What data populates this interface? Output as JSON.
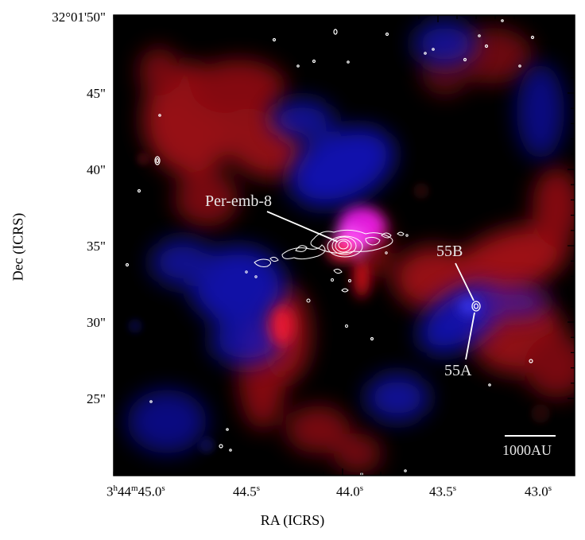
{
  "image": {
    "colors": {
      "blue": "#1c1cff",
      "red": "#ff1c1c",
      "magenta": "#ff2cff",
      "contour": "#ffffff",
      "background": "#000000"
    }
  },
  "axes": {
    "xlabel": "RA (ICRS)",
    "ylabel": "Dec (ICRS)",
    "x_ticks": [
      {
        "main": "3",
        "sup1": "h",
        "mid": "44",
        "sup2": "m",
        "sec": "45.0",
        "sup3": "s"
      },
      {
        "main": "",
        "sup1": "",
        "mid": "",
        "sup2": "",
        "sec": "44.5",
        "sup3": "s"
      },
      {
        "main": "",
        "sup1": "",
        "mid": "",
        "sup2": "",
        "sec": "44.0",
        "sup3": "s"
      },
      {
        "main": "",
        "sup1": "",
        "mid": "",
        "sup2": "",
        "sec": "43.5",
        "sup3": "s"
      },
      {
        "main": "",
        "sup1": "",
        "mid": "",
        "sup2": "",
        "sec": "43.0",
        "sup3": "s"
      }
    ],
    "y_ticks": [
      "32°01'50\"",
      "45\"",
      "40\"",
      "35\"",
      "30\"",
      "25\""
    ]
  },
  "annotations": {
    "source_main": "Per-emb-8",
    "source_b": "55B",
    "source_a": "55A",
    "scale_bar": "1000AU"
  }
}
